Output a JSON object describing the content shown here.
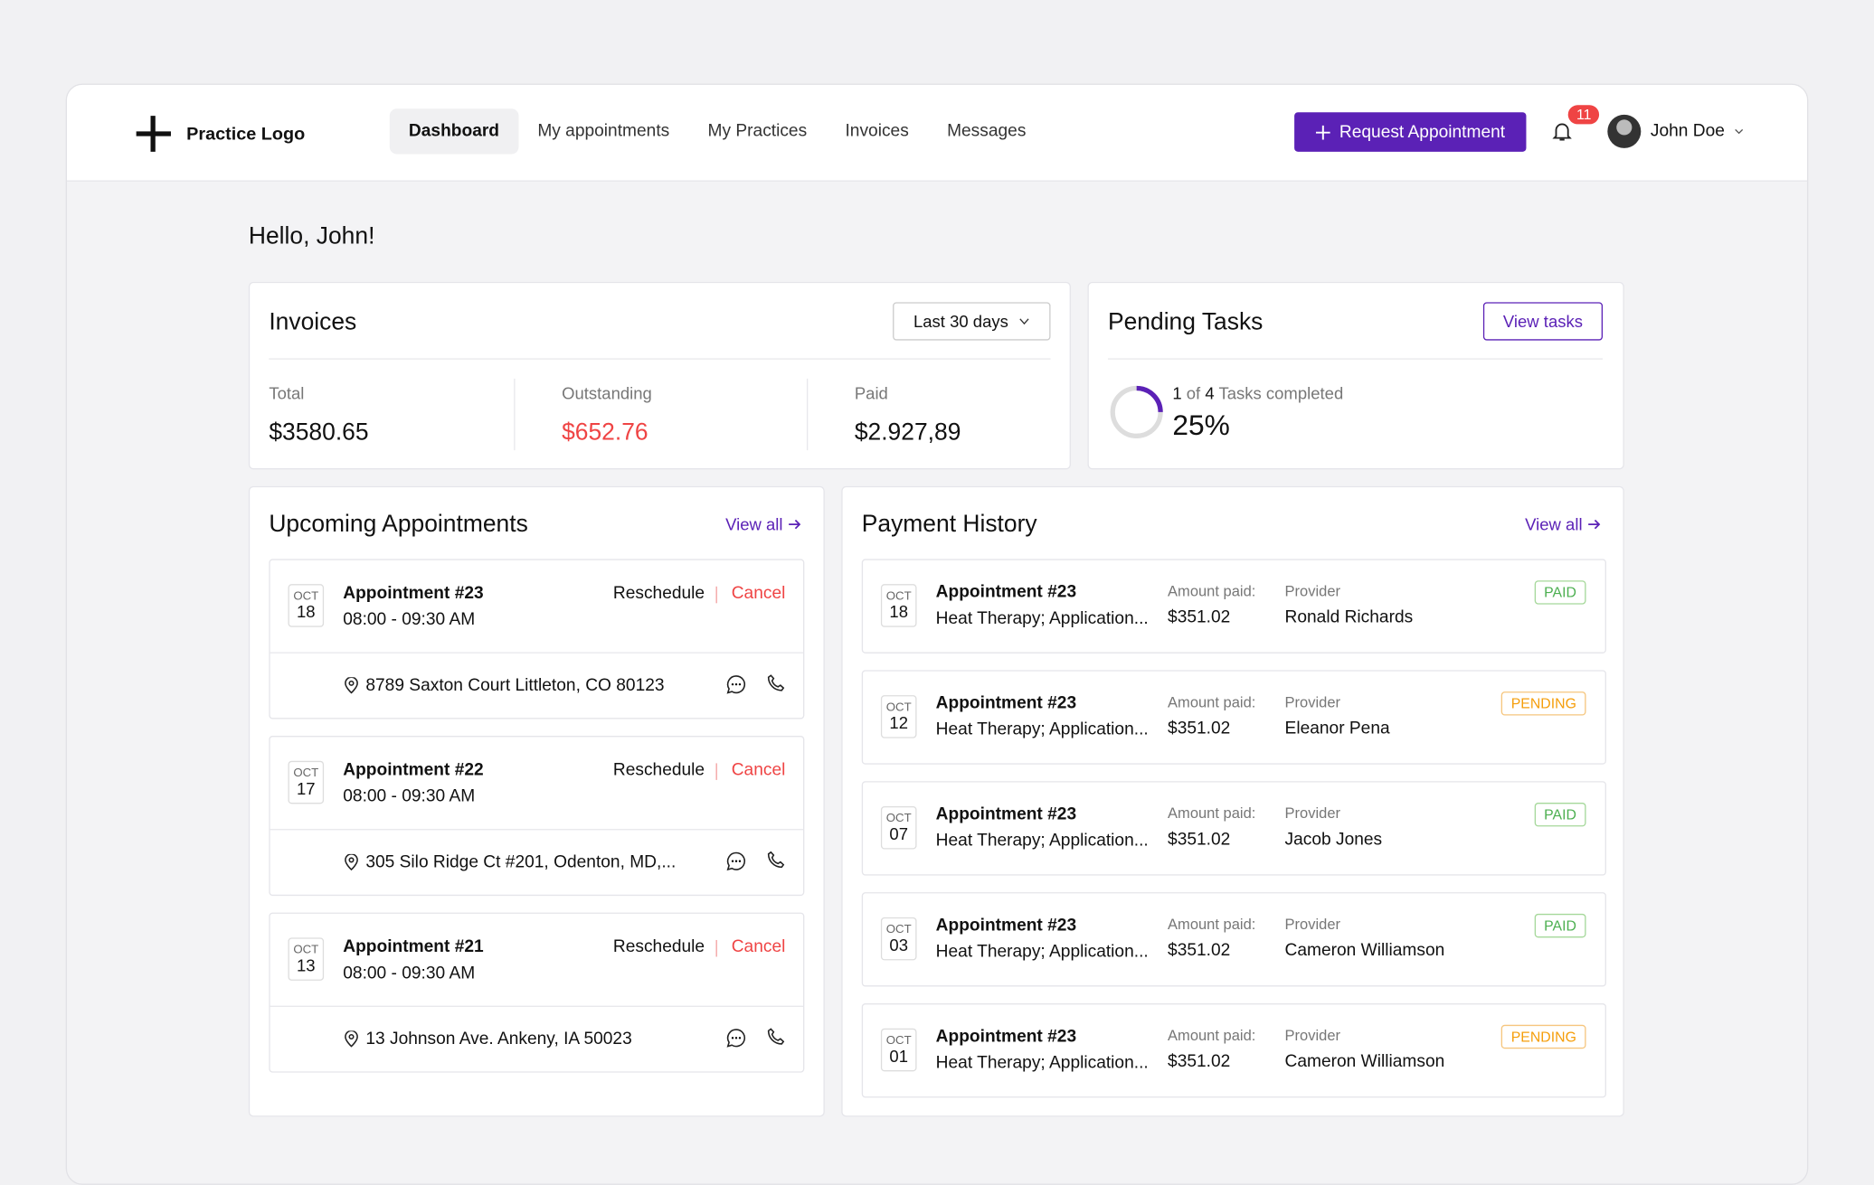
{
  "nav": {
    "logo": "Practice Logo",
    "links": [
      "Dashboard",
      "My appointments",
      "My Practices",
      "Invoices",
      "Messages"
    ],
    "cta": "Request Appointment",
    "notifications": "11",
    "user": "John Doe"
  },
  "greeting": "Hello, John!",
  "invoices": {
    "title": "Invoices",
    "filter": "Last 30 days",
    "stats": [
      {
        "label": "Total",
        "value": "$3580.65"
      },
      {
        "label": "Outstanding",
        "value": "$652.76"
      },
      {
        "label": "Paid",
        "value": "$2.927,89"
      }
    ]
  },
  "tasks": {
    "title": "Pending Tasks",
    "button": "View tasks",
    "done": "1",
    "of": "of",
    "total": "4",
    "caption": "Tasks completed",
    "percent": "25%"
  },
  "appointments": {
    "title": "Upcoming Appointments",
    "view_all": "View all",
    "reschedule": "Reschedule",
    "cancel": "Cancel",
    "items": [
      {
        "month": "OCT",
        "day": "18",
        "name": "Appointment #23",
        "time": "08:00 - 09:30 AM",
        "address": "8789 Saxton Court Littleton, CO 80123"
      },
      {
        "month": "OCT",
        "day": "17",
        "name": "Appointment #22",
        "time": "08:00 - 09:30 AM",
        "address": "305 Silo Ridge Ct #201, Odenton, MD,..."
      },
      {
        "month": "OCT",
        "day": "13",
        "name": "Appointment #21",
        "time": "08:00 - 09:30 AM",
        "address": "13 Johnson Ave. Ankeny, IA 50023"
      }
    ]
  },
  "payments": {
    "title": "Payment History",
    "view_all": "View all",
    "amount_label": "Amount paid:",
    "provider_label": "Provider",
    "items": [
      {
        "month": "OCT",
        "day": "18",
        "name": "Appointment #23",
        "service": "Heat Therapy; Application...",
        "amount": "$351.02",
        "provider": "Ronald Richards",
        "status": "PAID"
      },
      {
        "month": "OCT",
        "day": "12",
        "name": "Appointment #23",
        "service": "Heat Therapy; Application...",
        "amount": "$351.02",
        "provider": "Eleanor Pena",
        "status": "PENDING"
      },
      {
        "month": "OCT",
        "day": "07",
        "name": "Appointment #23",
        "service": "Heat Therapy; Application...",
        "amount": "$351.02",
        "provider": "Jacob Jones",
        "status": "PAID"
      },
      {
        "month": "OCT",
        "day": "03",
        "name": "Appointment #23",
        "service": "Heat Therapy; Application...",
        "amount": "$351.02",
        "provider": "Cameron Williamson",
        "status": "PAID"
      },
      {
        "month": "OCT",
        "day": "01",
        "name": "Appointment #23",
        "service": "Heat Therapy; Application...",
        "amount": "$351.02",
        "provider": "Cameron Williamson",
        "status": "PENDING"
      }
    ]
  }
}
